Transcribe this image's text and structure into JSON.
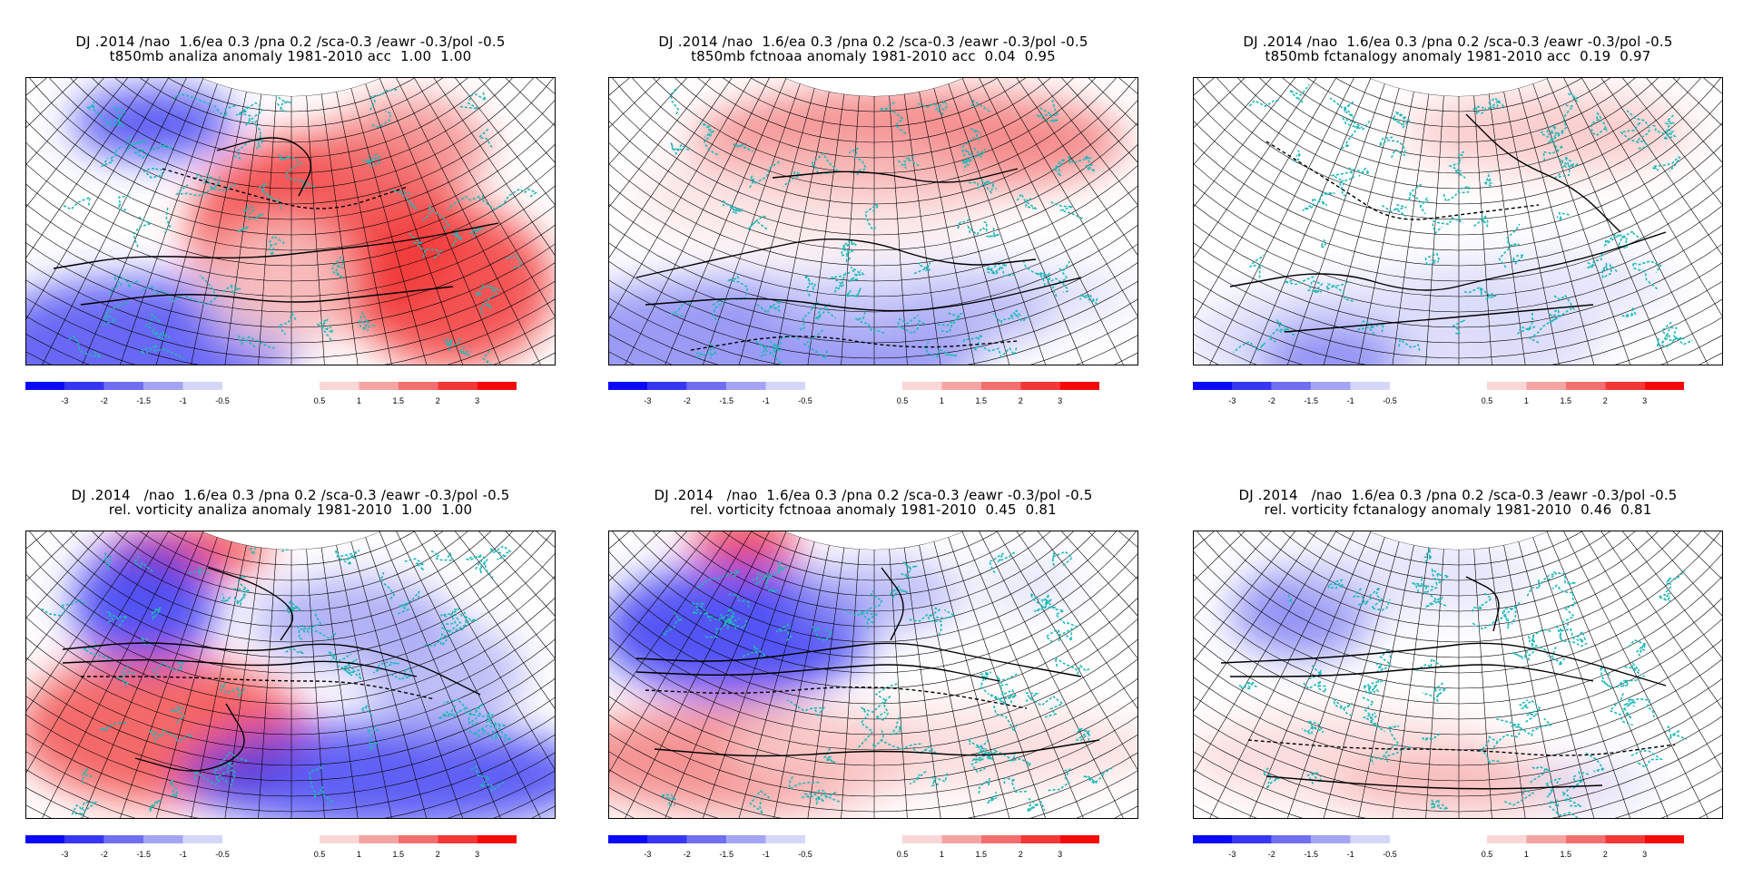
{
  "panels": [
    {
      "id": "p1",
      "title_line1": "DJ .2014 /nao  1.6/ea 0.3 /pna 0.2 /sca-0.3 /eawr -0.3/pol -0.5",
      "title_line2": "t850mb analiza anomaly 1981-2010 acc  1.00  1.00",
      "variable": "t850mb",
      "source": "analiza",
      "acc": [
        1.0,
        1.0
      ]
    },
    {
      "id": "p2",
      "title_line1": "DJ .2014 /nao  1.6/ea 0.3 /pna 0.2 /sca-0.3 /eawr -0.3/pol -0.5",
      "title_line2": "t850mb fctnoaa anomaly 1981-2010 acc  0.04  0.95",
      "variable": "t850mb",
      "source": "fctnoaa",
      "acc": [
        0.04,
        0.95
      ]
    },
    {
      "id": "p3",
      "title_line1": "DJ .2014 /nao  1.6/ea 0.3 /pna 0.2 /sca-0.3 /eawr -0.3/pol -0.5",
      "title_line2": "t850mb fctanalogy anomaly 1981-2010 acc  0.19  0.97",
      "variable": "t850mb",
      "source": "fctanalogy",
      "acc": [
        0.19,
        0.97
      ]
    },
    {
      "id": "p4",
      "title_line1": "DJ .2014   /nao  1.6/ea 0.3 /pna 0.2 /sca-0.3 /eawr -0.3/pol -0.5",
      "title_line2": "rel. vorticity analiza anomaly 1981-2010  1.00  1.00",
      "variable": "rel. vorticity",
      "source": "analiza",
      "acc": [
        1.0,
        1.0
      ]
    },
    {
      "id": "p5",
      "title_line1": "DJ .2014   /nao  1.6/ea 0.3 /pna 0.2 /sca-0.3 /eawr -0.3/pol -0.5",
      "title_line2": "rel. vorticity fctnoaa anomaly 1981-2010  0.45  0.81",
      "variable": "rel. vorticity",
      "source": "fctnoaa",
      "acc": [
        0.45,
        0.81
      ]
    },
    {
      "id": "p6",
      "title_line1": "DJ .2014   /nao  1.6/ea 0.3 /pna 0.2 /sca-0.3 /eawr -0.3/pol -0.5",
      "title_line2": "rel. vorticity fctanalogy anomaly 1981-2010  0.46  0.81",
      "variable": "rel. vorticity",
      "source": "fctanalogy",
      "acc": [
        0.46,
        0.81
      ]
    }
  ],
  "colorbar": {
    "negative_colors": [
      "#0a0af5",
      "#3737f2",
      "#6f6ff2",
      "#a4a4f5",
      "#d6d6fa"
    ],
    "negative_labels": [
      "-3",
      "-2",
      "-1.5",
      "-1",
      "-0.5"
    ],
    "positive_colors": [
      "#fad6d6",
      "#f5a4a4",
      "#f26f6f",
      "#f23737",
      "#f50a0a"
    ],
    "positive_labels": [
      "0.5",
      "1",
      "1.5",
      "2",
      "3"
    ]
  },
  "colors": {
    "coastline": "#1fb8b8",
    "grid": "#000000",
    "contour": "#000000"
  }
}
